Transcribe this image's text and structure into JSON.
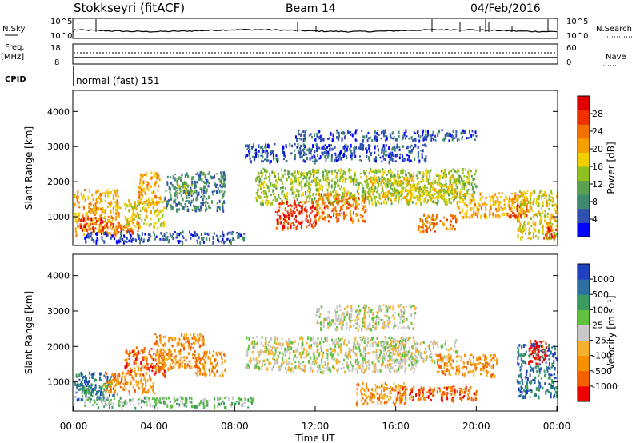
{
  "header": {
    "station": "Stokkseyri (fitACF)",
    "beam": "Beam 14",
    "date": "04/Feb/2016"
  },
  "ops_panel": {
    "nsky_label": "N.Sky",
    "nsky_ticks": [
      "10^5",
      "10^0"
    ],
    "nsearch_label": "N.Search",
    "nsearch_ticks": [
      "10^5",
      "10^0"
    ],
    "freq_label": "Freq.",
    "freq_unit": "[MHz]",
    "freq_ticks": [
      "18",
      "8"
    ],
    "nave_label": "Nave",
    "nave_ticks": [
      "60",
      "0"
    ],
    "cpid_label": "CPID",
    "cpid_value": "normal (fast) 151"
  },
  "chart_data": [
    {
      "type": "heatmap",
      "name": "power-panel",
      "ylabel": "Slant Range [km]",
      "yticks": [
        "4000",
        "3000",
        "2000",
        "1000"
      ],
      "ylim": [
        180,
        4600
      ],
      "colorbar_label": "Power [dB]",
      "colorbar_ticks": [
        "28",
        "24",
        "20",
        "16",
        "12",
        "8",
        "4"
      ],
      "colors": [
        "#0000ff",
        "#3050b0",
        "#408a70",
        "#5aa050",
        "#90c020",
        "#f0d000",
        "#f5a000",
        "#f27000",
        "#ee3000",
        "#e00000"
      ],
      "regions": [
        {
          "t": [
            0.0,
            2.3
          ],
          "r": [
            500,
            1800
          ],
          "c": 6
        },
        {
          "t": [
            0.3,
            1.5
          ],
          "r": [
            600,
            1000
          ],
          "c": 8
        },
        {
          "t": [
            1.5,
            3.2
          ],
          "r": [
            550,
            900
          ],
          "c": 7
        },
        {
          "t": [
            2.5,
            4.5
          ],
          "r": [
            700,
            1500
          ],
          "c": 5
        },
        {
          "t": [
            3.2,
            4.3
          ],
          "r": [
            1400,
            2300
          ],
          "c": 6
        },
        {
          "t": [
            4.5,
            7.5
          ],
          "r": [
            1200,
            2300
          ],
          "c": 2
        },
        {
          "t": [
            5.0,
            6.0
          ],
          "r": [
            1700,
            2000
          ],
          "c": 4
        },
        {
          "t": [
            0.5,
            8.5
          ],
          "r": [
            300,
            600
          ],
          "c": 1
        },
        {
          "t": [
            9.0,
            20.0
          ],
          "r": [
            1400,
            2400
          ],
          "c": 4
        },
        {
          "t": [
            10.0,
            12.0
          ],
          "r": [
            700,
            1500
          ],
          "c": 8
        },
        {
          "t": [
            12.0,
            14.5
          ],
          "r": [
            900,
            1700
          ],
          "c": 7
        },
        {
          "t": [
            14.5,
            19.0
          ],
          "r": [
            1500,
            2200
          ],
          "c": 5
        },
        {
          "t": [
            17.0,
            19.0
          ],
          "r": [
            600,
            1100
          ],
          "c": 7
        },
        {
          "t": [
            19.0,
            22.5
          ],
          "r": [
            1000,
            1700
          ],
          "c": 6
        },
        {
          "t": [
            21.5,
            22.5
          ],
          "r": [
            1000,
            1400
          ],
          "c": 8
        },
        {
          "t": [
            8.5,
            17.5
          ],
          "r": [
            2600,
            3100
          ],
          "c": 1
        },
        {
          "t": [
            11.0,
            20.0
          ],
          "r": [
            3200,
            3500
          ],
          "c": 1
        },
        {
          "t": [
            22.0,
            24.0
          ],
          "r": [
            400,
            1800
          ],
          "c": 5
        },
        {
          "t": [
            23.3,
            24.0
          ],
          "r": [
            400,
            800
          ],
          "c": 8
        }
      ]
    },
    {
      "type": "heatmap",
      "name": "velocity-panel",
      "ylabel": "Slant Range [km]",
      "yticks": [
        "4000",
        "3000",
        "2000",
        "1000"
      ],
      "ylim": [
        180,
        4600
      ],
      "xlabel": "Time UT",
      "xticks": [
        "00:00",
        "04:00",
        "08:00",
        "12:00",
        "16:00",
        "20:00",
        "00:00"
      ],
      "xlim": [
        0,
        24
      ],
      "colorbar_label": "Velocity [m s⁻¹]",
      "colorbar_ticks": [
        "1000",
        "500",
        "100",
        "25",
        "-25",
        "-100",
        "-500",
        "-1000"
      ],
      "colors": [
        "#ee0000",
        "#f26000",
        "#f59000",
        "#f5b030",
        "#c8c8c8",
        "#60c040",
        "#3a9a60",
        "#2a70a0",
        "#2040c0"
      ],
      "regions": [
        {
          "t": [
            0.0,
            2.0
          ],
          "r": [
            500,
            1300
          ],
          "c": 7
        },
        {
          "t": [
            0.2,
            1.8
          ],
          "r": [
            700,
            1000
          ],
          "c": 6
        },
        {
          "t": [
            1.5,
            4.0
          ],
          "r": [
            700,
            1300
          ],
          "c": 2
        },
        {
          "t": [
            2.5,
            4.5
          ],
          "r": [
            1200,
            2000
          ],
          "c": 1
        },
        {
          "t": [
            4.0,
            6.5
          ],
          "r": [
            1400,
            2400
          ],
          "c": 2
        },
        {
          "t": [
            6.0,
            7.5
          ],
          "r": [
            1200,
            1900
          ],
          "c": 2
        },
        {
          "t": [
            0.5,
            9.0
          ],
          "r": [
            300,
            600
          ],
          "c": 5
        },
        {
          "t": [
            8.5,
            10.5
          ],
          "r": [
            1400,
            2300
          ],
          "c": 4
        },
        {
          "t": [
            10.5,
            17.0
          ],
          "r": [
            1300,
            2300
          ],
          "c": 4
        },
        {
          "t": [
            15.0,
            19.0
          ],
          "r": [
            1600,
            2200
          ],
          "c": 4
        },
        {
          "t": [
            12.0,
            17.0
          ],
          "r": [
            2500,
            3200
          ],
          "c": 4
        },
        {
          "t": [
            14.0,
            16.5
          ],
          "r": [
            400,
            1000
          ],
          "c": 2
        },
        {
          "t": [
            16.0,
            20.0
          ],
          "r": [
            500,
            900
          ],
          "c": 1
        },
        {
          "t": [
            18.0,
            21.0
          ],
          "r": [
            1200,
            1800
          ],
          "c": 2
        },
        {
          "t": [
            22.0,
            24.0
          ],
          "r": [
            600,
            2100
          ],
          "c": 7
        },
        {
          "t": [
            22.5,
            23.5
          ],
          "r": [
            1500,
            2200
          ],
          "c": 0
        }
      ]
    }
  ]
}
